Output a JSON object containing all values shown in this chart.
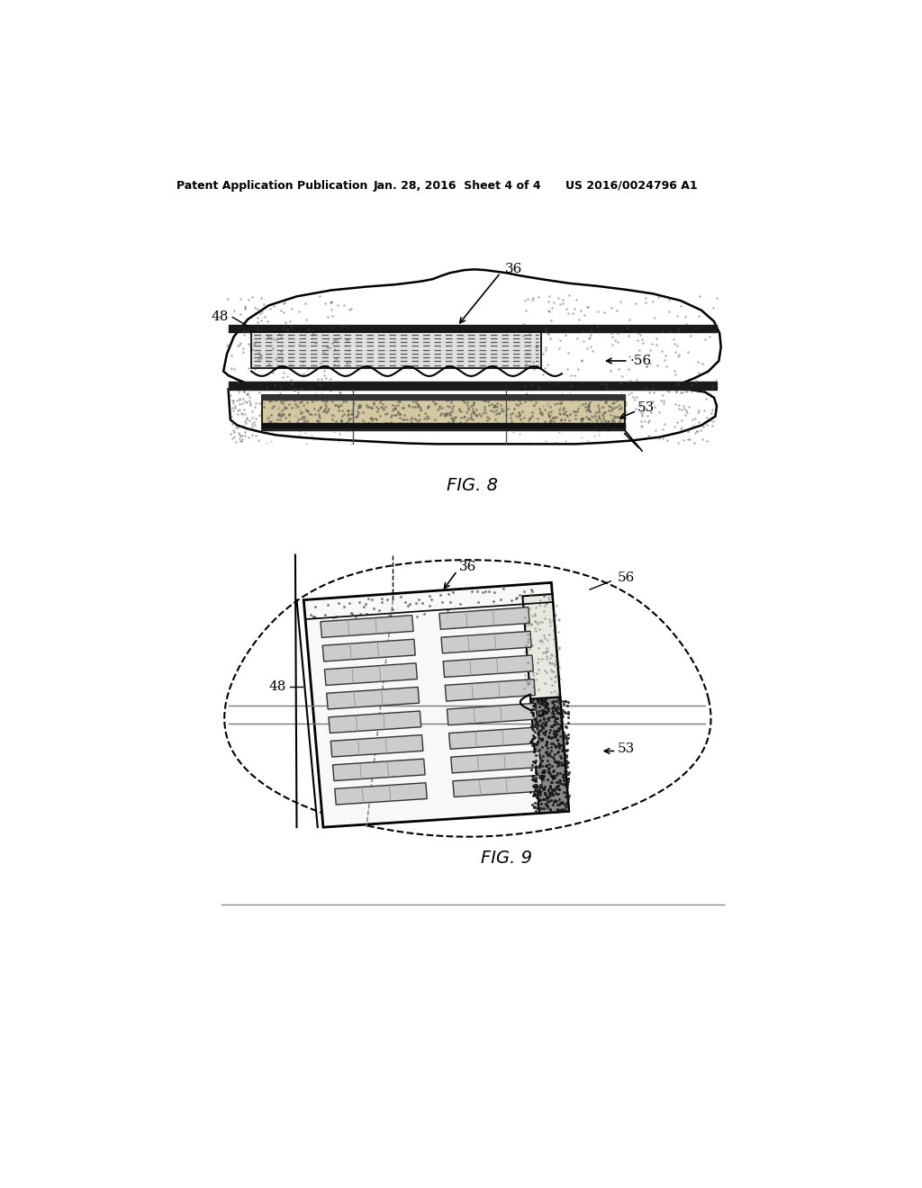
{
  "bg_color": "#ffffff",
  "header_left": "Patent Application Publication",
  "header_mid": "Jan. 28, 2016  Sheet 4 of 4",
  "header_right": "US 2016/0024796 A1",
  "fig8_label": "FIG. 8",
  "fig9_label": "FIG. 9",
  "text_color": "#000000",
  "line_color": "#000000",
  "shingle_fill": "#ffffff",
  "speckle_color": "#444444",
  "insert_fill": "#e8e8e8",
  "gran_fill": "#aaaaaa"
}
